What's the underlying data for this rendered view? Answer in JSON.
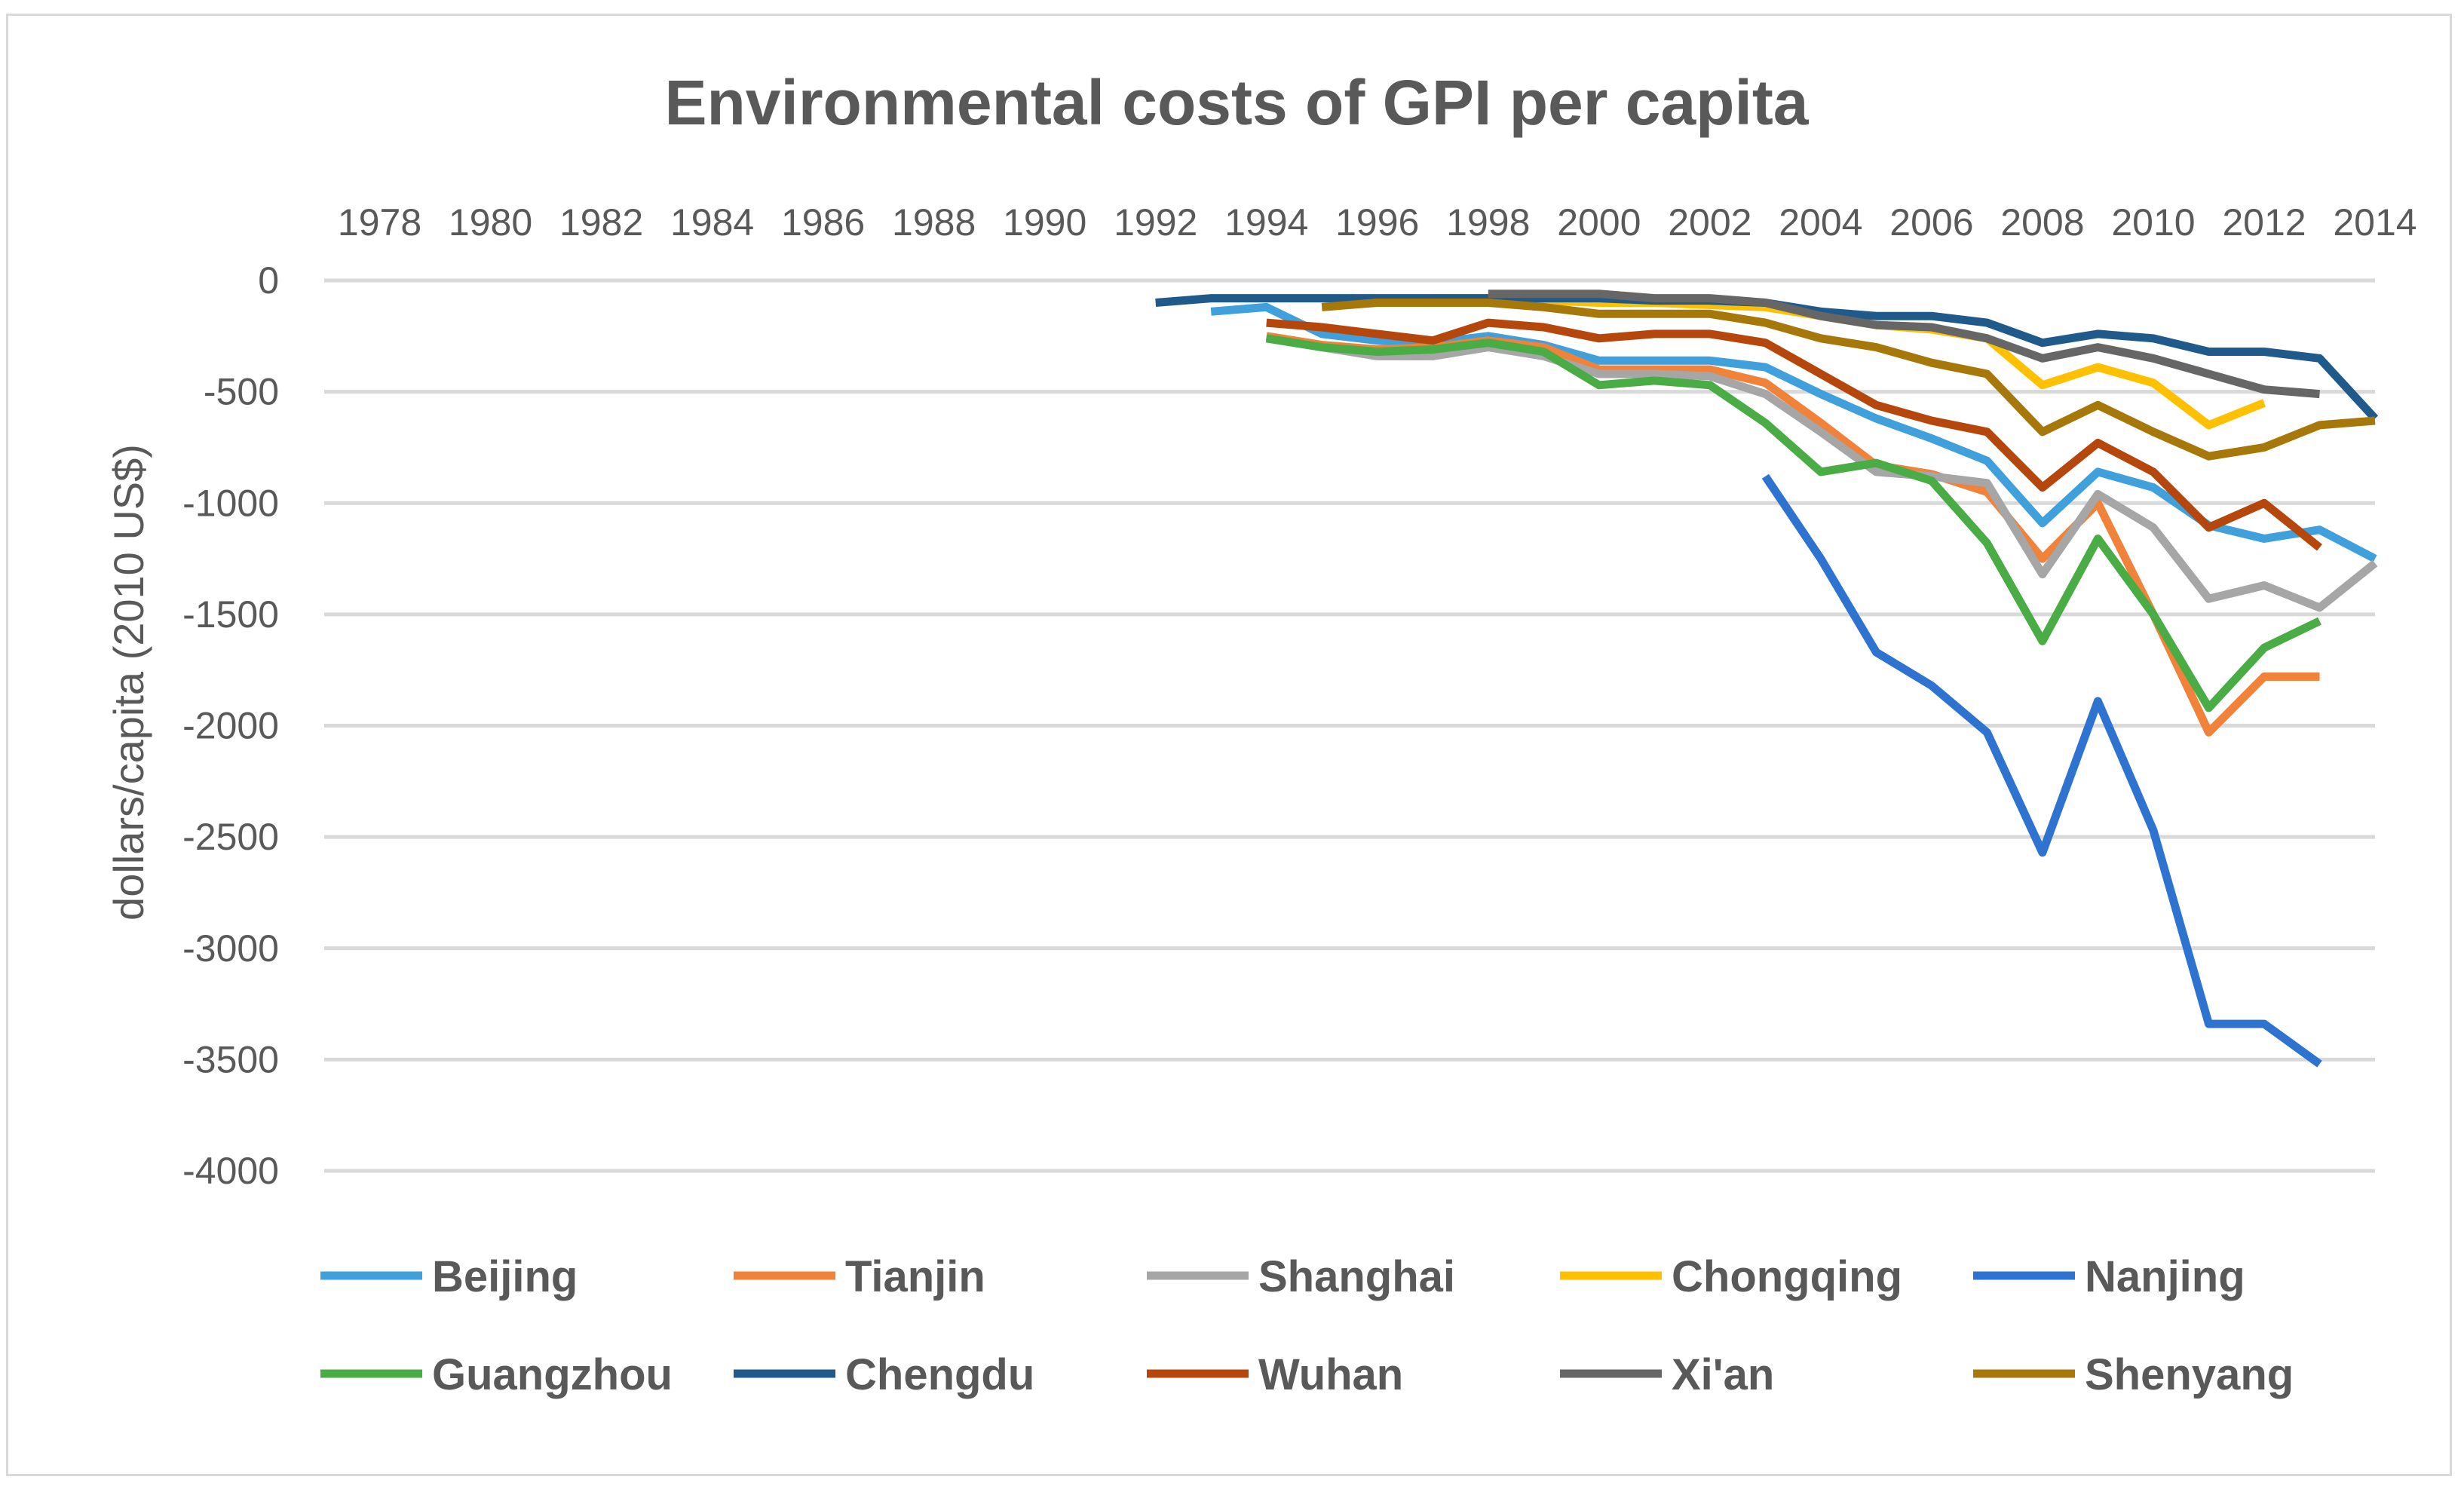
{
  "chart_data": {
    "type": "line",
    "title": "Environmental costs of GPI per capita",
    "xlabel": "",
    "ylabel": "dollars/capita  (2010 US$)",
    "x_tick_labels": [
      "1978",
      "1980",
      "1982",
      "1984",
      "1986",
      "1988",
      "1990",
      "1992",
      "1994",
      "1996",
      "1998",
      "2000",
      "2002",
      "2004",
      "2006",
      "2008",
      "2010",
      "2012",
      "2014"
    ],
    "y_tick_labels": [
      "0",
      "-500",
      "-1000",
      "-1500",
      "-2000",
      "-2500",
      "-3000",
      "-3500",
      "-4000"
    ],
    "xlim": [
      1977,
      2014
    ],
    "ylim": [
      -4000,
      0
    ],
    "x_axis_position": "top",
    "grid": true,
    "legend_position": "bottom",
    "series": [
      {
        "name": "Beijing",
        "color": "#3fa0dc",
        "x": [
          1993,
          1994,
          1995,
          1996,
          1997,
          1998,
          1999,
          2000,
          2001,
          2002,
          2003,
          2004,
          2005,
          2006,
          2007,
          2008,
          2009,
          2010,
          2011,
          2012,
          2013,
          2014
        ],
        "values": [
          -140,
          -120,
          -240,
          -270,
          -280,
          -250,
          -290,
          -360,
          -360,
          -360,
          -390,
          -510,
          -620,
          -710,
          -810,
          -1090,
          -860,
          -930,
          -1100,
          -1160,
          -1120,
          -1250
        ]
      },
      {
        "name": "Tianjin",
        "color": "#f0823a",
        "x": [
          1994,
          1995,
          1996,
          1997,
          1998,
          1999,
          2000,
          2001,
          2002,
          2003,
          2004,
          2005,
          2006,
          2007,
          2008,
          2009,
          2010,
          2011,
          2012,
          2013
        ],
        "values": [
          -250,
          -290,
          -310,
          -300,
          -270,
          -300,
          -400,
          -400,
          -400,
          -460,
          -640,
          -830,
          -870,
          -950,
          -1250,
          -1000,
          -1500,
          -2030,
          -1780,
          -1780
        ]
      },
      {
        "name": "Shanghai",
        "color": "#a6a6a6",
        "x": [
          1995,
          1996,
          1997,
          1998,
          1999,
          2000,
          2001,
          2002,
          2003,
          2004,
          2005,
          2006,
          2007,
          2008,
          2009,
          2010,
          2011,
          2012,
          2013,
          2014
        ],
        "values": [
          -300,
          -340,
          -340,
          -300,
          -340,
          -420,
          -420,
          -430,
          -510,
          -680,
          -860,
          -880,
          -910,
          -1320,
          -960,
          -1110,
          -1430,
          -1370,
          -1470,
          -1270
        ]
      },
      {
        "name": "Chongqing",
        "color": "#ffc000",
        "x": [
          1997,
          1998,
          1999,
          2000,
          2001,
          2002,
          2003,
          2004,
          2005,
          2006,
          2007,
          2008,
          2009,
          2010,
          2011,
          2012
        ],
        "values": [
          -80,
          -80,
          -90,
          -100,
          -100,
          -110,
          -120,
          -160,
          -200,
          -220,
          -260,
          -470,
          -390,
          -460,
          -650,
          -550
        ]
      },
      {
        "name": "Nanjing",
        "color": "#2f73d1",
        "x": [
          2003,
          2004,
          2005,
          2006,
          2007,
          2008,
          2009,
          2010,
          2011,
          2012,
          2013
        ],
        "values": [
          -880,
          -1250,
          -1670,
          -1820,
          -2030,
          -2570,
          -1890,
          -2470,
          -3340,
          -3340,
          -3520
        ]
      },
      {
        "name": "Guangzhou",
        "color": "#4aac45",
        "x": [
          1994,
          1995,
          1996,
          1997,
          1998,
          1999,
          2000,
          2001,
          2002,
          2003,
          2004,
          2005,
          2006,
          2007,
          2008,
          2009,
          2010,
          2011,
          2012,
          2013
        ],
        "values": [
          -260,
          -300,
          -320,
          -310,
          -280,
          -320,
          -470,
          -450,
          -470,
          -640,
          -860,
          -820,
          -900,
          -1180,
          -1620,
          -1160,
          -1500,
          -1920,
          -1650,
          -1530
        ]
      },
      {
        "name": "Chengdu",
        "color": "#1f5a8a",
        "x": [
          1992,
          1993,
          1994,
          1995,
          1996,
          1997,
          1998,
          1999,
          2000,
          2001,
          2002,
          2003,
          2004,
          2005,
          2006,
          2007,
          2008,
          2009,
          2010,
          2011,
          2012,
          2013,
          2014
        ],
        "values": [
          -100,
          -80,
          -80,
          -80,
          -80,
          -80,
          -80,
          -80,
          -80,
          -90,
          -90,
          -100,
          -140,
          -160,
          -160,
          -190,
          -280,
          -240,
          -260,
          -320,
          -320,
          -350,
          -620
        ]
      },
      {
        "name": "Wuhan",
        "color": "#b5470d",
        "x": [
          1994,
          1995,
          1996,
          1997,
          1998,
          1999,
          2000,
          2001,
          2002,
          2003,
          2004,
          2005,
          2006,
          2007,
          2008,
          2009,
          2010,
          2011,
          2012,
          2013
        ],
        "values": [
          -190,
          -210,
          -240,
          -270,
          -190,
          -210,
          -260,
          -240,
          -240,
          -280,
          -420,
          -560,
          -630,
          -680,
          -930,
          -730,
          -860,
          -1110,
          -1000,
          -1200
        ]
      },
      {
        "name": "Xi'an",
        "color": "#666666",
        "x": [
          1998,
          1999,
          2000,
          2001,
          2002,
          2003,
          2004,
          2005,
          2006,
          2007,
          2008,
          2009,
          2010,
          2011,
          2012,
          2013
        ],
        "values": [
          -60,
          -60,
          -60,
          -80,
          -80,
          -100,
          -160,
          -200,
          -210,
          -260,
          -350,
          -300,
          -350,
          -420,
          -490,
          -510
        ]
      },
      {
        "name": "Shenyang",
        "color": "#a6780a",
        "x": [
          1995,
          1996,
          1997,
          1998,
          1999,
          2000,
          2001,
          2002,
          2003,
          2004,
          2005,
          2006,
          2007,
          2008,
          2009,
          2010,
          2011,
          2012,
          2013,
          2014
        ],
        "values": [
          -120,
          -100,
          -100,
          -100,
          -120,
          -150,
          -150,
          -150,
          -190,
          -260,
          -300,
          -370,
          -420,
          -680,
          -560,
          -680,
          -790,
          -750,
          -650,
          -630
        ]
      }
    ]
  }
}
